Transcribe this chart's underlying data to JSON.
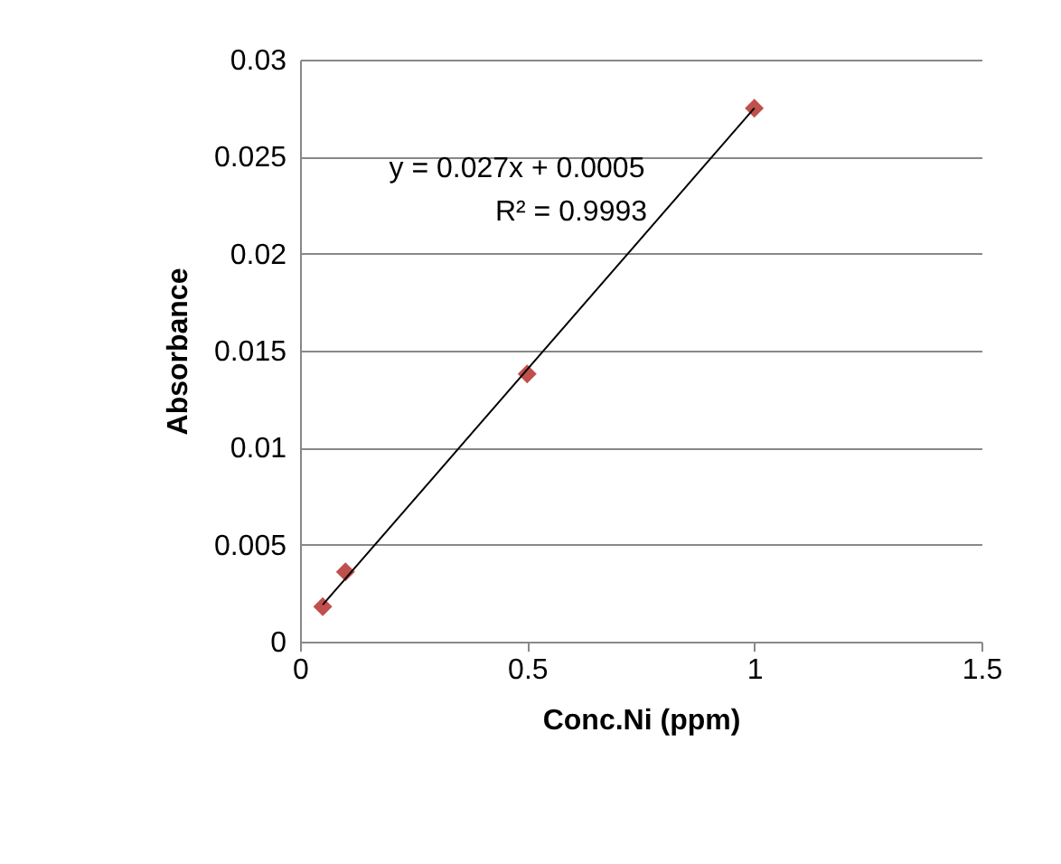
{
  "chart_data": {
    "type": "scatter",
    "xlabel": "Conc.Ni (ppm)",
    "ylabel": "Absorbance",
    "annotations": [
      "y = 0.027x + 0.0005",
      "R² = 0.9993"
    ],
    "x": [
      0.05,
      0.1,
      0.5,
      1
    ],
    "series": [
      {
        "color": "#c0504d",
        "values": [
          0.0018,
          0.0036,
          0.0138,
          0.0275
        ],
        "marker": "diamond"
      },
      {
        "type": "line",
        "color": "#000000",
        "x": [
          0.05,
          1
        ],
        "values": [
          0.0019,
          0.0275
        ]
      }
    ],
    "xlim": [
      0,
      1.5
    ],
    "xticks": [
      0,
      0.5,
      1,
      1.5
    ],
    "ylim": [
      0,
      0.03
    ],
    "yticks": [
      0,
      0.005,
      0.01,
      0.015,
      0.02,
      0.025,
      0.03
    ],
    "grid": "y"
  }
}
